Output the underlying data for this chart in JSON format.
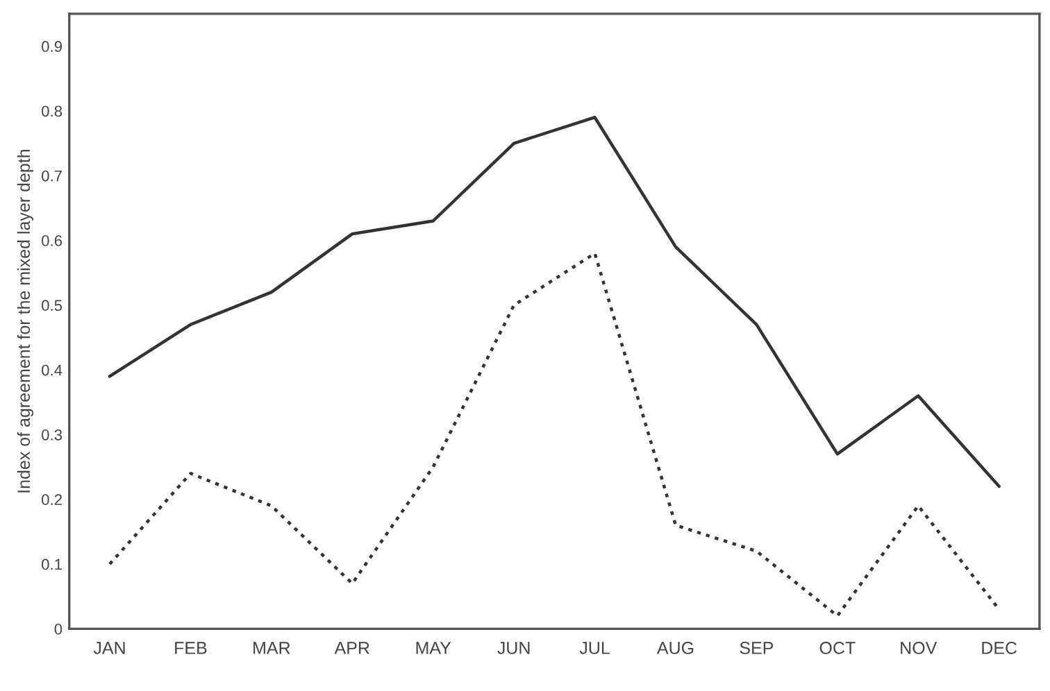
{
  "chart_data": {
    "type": "line",
    "ylabel": "Index of agreement for the mixed layer depth",
    "categories": [
      "JAN",
      "FEB",
      "MAR",
      "APR",
      "MAY",
      "JUN",
      "JUL",
      "AUG",
      "SEP",
      "OCT",
      "NOV",
      "DEC"
    ],
    "series": [
      {
        "color": "#333333",
        "line_style": "solid",
        "values": [
          0.39,
          0.47,
          0.52,
          0.61,
          0.63,
          0.75,
          0.79,
          0.59,
          0.47,
          0.27,
          0.36,
          0.22
        ]
      },
      {
        "color": "#333333",
        "line_style": "dotted",
        "values": [
          0.1,
          0.24,
          0.19,
          0.07,
          0.25,
          0.5,
          0.58,
          0.16,
          0.12,
          0.02,
          0.19,
          0.03
        ]
      }
    ],
    "ylim": [
      0,
      0.95
    ],
    "yticks": [
      0,
      0.1,
      0.2,
      0.3,
      0.4,
      0.5,
      0.6,
      0.7,
      0.8,
      0.9
    ],
    "grid": false,
    "legend": false,
    "marker": "none"
  }
}
